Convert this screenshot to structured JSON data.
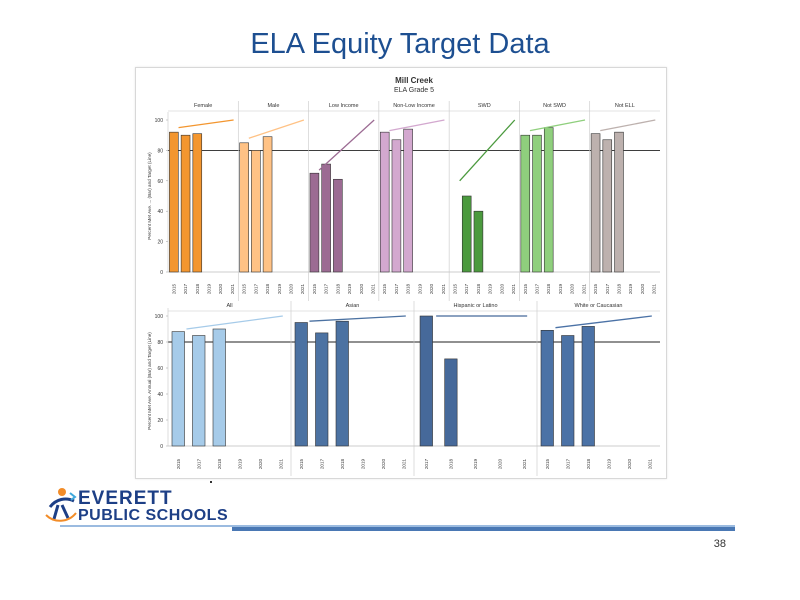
{
  "slide": {
    "title": "ELA Equity Target Data",
    "page_number": "38",
    "logo": {
      "line1": "EVERETT",
      "line2": "PUBLIC SCHOOLS"
    }
  },
  "colors": {
    "title": "#1d4f91",
    "female": "#f3962f",
    "male": "#ffc285",
    "low_income": "#9c6b93",
    "non_low_income": "#d3a8cf",
    "swd": "#4b9a3e",
    "not_swd": "#8fcf7d",
    "not_ell": "#bdb1ae",
    "all": "#a6cbe9",
    "asian": "#4c72a2",
    "hispanic": "#46699a",
    "white": "#4b72a6"
  },
  "chart_data": [
    {
      "type": "bar",
      "title": "Mill Creek",
      "subtitle": "ELA Grade 5",
      "ylabel": "Percent Met Ave. ... (Bar) and Target (Line)",
      "ylim": [
        0,
        100
      ],
      "yticks": [
        0,
        20,
        40,
        60,
        80,
        100
      ],
      "reference_line": 80,
      "categories": [
        "2015",
        "2017",
        "2018",
        "2019",
        "2020",
        "2021"
      ],
      "panels": [
        {
          "name": "Female",
          "color": "#f3962f",
          "values": [
            92,
            90,
            91,
            null,
            null,
            null
          ],
          "target": [
            95,
            100
          ]
        },
        {
          "name": "Male",
          "color": "#ffc285",
          "values": [
            85,
            80,
            89,
            null,
            null,
            null
          ],
          "target": [
            88,
            100
          ]
        },
        {
          "name": "Low Income",
          "color": "#9c6b93",
          "values": [
            65,
            71,
            61,
            null,
            null,
            null
          ],
          "target": [
            67,
            100
          ]
        },
        {
          "name": "Non-Low Income",
          "color": "#d3a8cf",
          "values": [
            92,
            87,
            94,
            null,
            null,
            null
          ],
          "target": [
            93,
            100
          ]
        },
        {
          "name": "SWD",
          "color": "#4b9a3e",
          "values": [
            null,
            50,
            40,
            null,
            null,
            null
          ],
          "target": [
            60,
            100
          ]
        },
        {
          "name": "Not SWD",
          "color": "#8fcf7d",
          "values": [
            90,
            90,
            95,
            null,
            null,
            null
          ],
          "target": [
            93,
            100
          ]
        },
        {
          "name": "Not ELL",
          "color": "#bdb1ae",
          "values": [
            91,
            87,
            92,
            null,
            null,
            null
          ],
          "target": [
            93,
            100
          ]
        }
      ]
    },
    {
      "type": "bar",
      "ylabel": "Percent Met Ave. Annual (Bar) and Target (Line)",
      "ylim": [
        0,
        100
      ],
      "yticks": [
        0,
        20,
        40,
        60,
        80,
        100
      ],
      "reference_line": 80,
      "panels": [
        {
          "name": "All",
          "color": "#a6cbe9",
          "categories": [
            "2015",
            "2017",
            "2018",
            "2019",
            "2020",
            "2021"
          ],
          "values": [
            88,
            85,
            90,
            null,
            null,
            null
          ],
          "target": [
            90,
            100
          ]
        },
        {
          "name": "Asian",
          "color": "#4c72a2",
          "categories": [
            "2015",
            "2017",
            "2018",
            "2019",
            "2020",
            "2021"
          ],
          "values": [
            95,
            87,
            96,
            null,
            null,
            null
          ],
          "target": [
            96,
            100
          ]
        },
        {
          "name": "Hispanic or Latino",
          "color": "#46699a",
          "categories": [
            "2017",
            "2018",
            "2019",
            "2020",
            "2021"
          ],
          "values": [
            100,
            67,
            null,
            null,
            null
          ],
          "target": [
            100,
            100
          ]
        },
        {
          "name": "White or Caucasian",
          "color": "#4b72a6",
          "categories": [
            "2015",
            "2017",
            "2018",
            "2019",
            "2020",
            "2021"
          ],
          "values": [
            89,
            85,
            92,
            null,
            null,
            null
          ],
          "target": [
            91,
            100
          ]
        }
      ]
    }
  ]
}
